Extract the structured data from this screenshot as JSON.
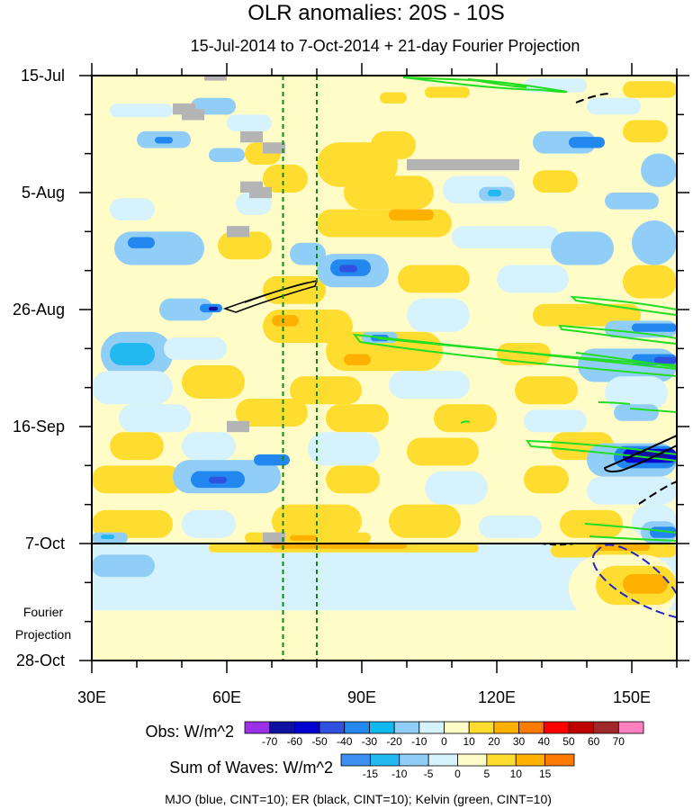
{
  "chart_data": {
    "type": "heatmap",
    "title": "OLR anomalies: 20S - 10S",
    "subtitle": "15-Jul-2014 to 7-Oct-2014 + 21-day Fourier Projection",
    "x_range": [
      30,
      160
    ],
    "x_ticks": [
      {
        "value": 30,
        "label": "30E"
      },
      {
        "value": 60,
        "label": "60E"
      },
      {
        "value": 90,
        "label": "90E"
      },
      {
        "value": 120,
        "label": "120E"
      },
      {
        "value": 150,
        "label": "150E"
      }
    ],
    "y_range_days": [
      0,
      105
    ],
    "y_ticks": [
      {
        "day": 0,
        "label": "15-Jul"
      },
      {
        "day": 21,
        "label": "5-Aug"
      },
      {
        "day": 42,
        "label": "26-Aug"
      },
      {
        "day": 63,
        "label": "16-Sep"
      },
      {
        "day": 84,
        "label": "7-Oct"
      },
      {
        "day": 105,
        "label": "28-Oct"
      }
    ],
    "fourier_label_lines": [
      "Fourier",
      "Projection"
    ],
    "observation_end_day": 84,
    "dashed_longitudes": [
      72.5,
      80
    ],
    "obs_legend": {
      "label": "Obs: W/m^2",
      "levels": [
        "-70",
        "-60",
        "-50",
        "-40",
        "-30",
        "-20",
        "-10",
        "0",
        "10",
        "20",
        "30",
        "40",
        "50",
        "60",
        "70"
      ],
      "colors": [
        "#9b30e8",
        "#1010a0",
        "#0000d0",
        "#3050e0",
        "#2288f0",
        "#10b8f0",
        "#90cef8",
        "#d6f2fc",
        "#fffcc8",
        "#ffdd30",
        "#ffb000",
        "#ff7a00",
        "#ff0000",
        "#c00000",
        "#a02828",
        "#ff80c0"
      ]
    },
    "waves_legend": {
      "label": "Sum of Waves: W/m^2",
      "levels": [
        "-15",
        "-10",
        "-5",
        "0",
        "5",
        "10",
        "15"
      ],
      "colors": [
        "#3a8ff0",
        "#22b8f0",
        "#90cef8",
        "#d6f2fc",
        "#fffcc8",
        "#ffdd30",
        "#ffb000",
        "#ff7a00"
      ]
    },
    "footnote": "MJO (blue, CINT=10); ER (black, CINT=10); Kelvin (green, CINT=10)",
    "wave_contours": {
      "kelvin": {
        "color": "#22dd22"
      },
      "er": {
        "color": "#000000"
      },
      "mjo": {
        "color": "#1c28c8"
      }
    },
    "patches": [
      {
        "lon": 30,
        "day": 0,
        "w": 130,
        "h": 105,
        "c": "#fffcc8"
      },
      {
        "lon": 30,
        "day": 84,
        "w": 130,
        "h": 21,
        "c": "#d6f2fc"
      },
      {
        "lon": 30,
        "day": 96,
        "w": 130,
        "h": 9,
        "c": "#fffcc8"
      },
      {
        "lon": 34,
        "day": 5,
        "w": 14,
        "h": 2.5,
        "c": "#d6f2fc"
      },
      {
        "lon": 52,
        "day": 4,
        "w": 10,
        "h": 3,
        "c": "#90cef8"
      },
      {
        "lon": 60,
        "day": 7,
        "w": 10,
        "h": 3,
        "c": "#d6f2fc"
      },
      {
        "lon": 94,
        "day": 3,
        "w": 6,
        "h": 2,
        "c": "#ffdd30"
      },
      {
        "lon": 104,
        "day": 2,
        "w": 10,
        "h": 2,
        "c": "#ffdd30"
      },
      {
        "lon": 126,
        "day": 0.5,
        "w": 14,
        "h": 2.5,
        "c": "#d6f2fc"
      },
      {
        "lon": 140,
        "day": 4,
        "w": 12,
        "h": 3,
        "c": "#d6f2fc"
      },
      {
        "lon": 148,
        "day": 1,
        "w": 12,
        "h": 3,
        "c": "#ffdd30"
      },
      {
        "lon": 40,
        "day": 10,
        "w": 12,
        "h": 3,
        "c": "#90cef8"
      },
      {
        "lon": 44,
        "day": 11,
        "w": 4,
        "h": 1.2,
        "c": "#2288f0"
      },
      {
        "lon": 56,
        "day": 13,
        "w": 8,
        "h": 2.5,
        "c": "#90cef8"
      },
      {
        "lon": 64,
        "day": 12,
        "w": 8,
        "h": 4,
        "c": "#ffdd30"
      },
      {
        "lon": 68,
        "day": 16,
        "w": 10,
        "h": 5,
        "c": "#ffdd30"
      },
      {
        "lon": 80,
        "day": 12,
        "w": 18,
        "h": 8,
        "c": "#ffdd30"
      },
      {
        "lon": 92,
        "day": 10,
        "w": 10,
        "h": 5,
        "c": "#ffdd30"
      },
      {
        "lon": 128,
        "day": 10,
        "w": 14,
        "h": 4,
        "c": "#90cef8"
      },
      {
        "lon": 136,
        "day": 11,
        "w": 8,
        "h": 2,
        "c": "#2288f0"
      },
      {
        "lon": 148,
        "day": 8,
        "w": 10,
        "h": 4,
        "c": "#ffdd30"
      },
      {
        "lon": 152,
        "day": 14,
        "w": 8,
        "h": 6,
        "c": "#90cef8"
      },
      {
        "lon": 86,
        "day": 18,
        "w": 20,
        "h": 6,
        "c": "#ffdd30"
      },
      {
        "lon": 108,
        "day": 18,
        "w": 16,
        "h": 5,
        "c": "#d6f2fc"
      },
      {
        "lon": 116,
        "day": 20,
        "w": 8,
        "h": 2.5,
        "c": "#90cef8"
      },
      {
        "lon": 118,
        "day": 20.5,
        "w": 3,
        "h": 1.2,
        "c": "#22b8f0"
      },
      {
        "lon": 128,
        "day": 17,
        "w": 10,
        "h": 4,
        "c": "#ffdd30"
      },
      {
        "lon": 144,
        "day": 21,
        "w": 12,
        "h": 3,
        "c": "#90cef8"
      },
      {
        "lon": 34,
        "day": 22,
        "w": 10,
        "h": 4,
        "c": "#d6f2fc"
      },
      {
        "lon": 62,
        "day": 21,
        "w": 8,
        "h": 4,
        "c": "#d6f2fc"
      },
      {
        "lon": 80,
        "day": 24,
        "w": 30,
        "h": 5,
        "c": "#ffdd30"
      },
      {
        "lon": 96,
        "day": 24,
        "w": 10,
        "h": 2,
        "c": "#ffb000"
      },
      {
        "lon": 35,
        "day": 28,
        "w": 20,
        "h": 6,
        "c": "#90cef8"
      },
      {
        "lon": 38,
        "day": 29,
        "w": 6,
        "h": 2,
        "c": "#2288f0"
      },
      {
        "lon": 58,
        "day": 28,
        "w": 12,
        "h": 5,
        "c": "#ffdd30"
      },
      {
        "lon": 74,
        "day": 30,
        "w": 8,
        "h": 4,
        "c": "#90cef8"
      },
      {
        "lon": 110,
        "day": 27,
        "w": 24,
        "h": 4,
        "c": "#d6f2fc"
      },
      {
        "lon": 132,
        "day": 28,
        "w": 14,
        "h": 6,
        "c": "#90cef8"
      },
      {
        "lon": 150,
        "day": 26,
        "w": 10,
        "h": 8,
        "c": "#90cef8"
      },
      {
        "lon": 68,
        "day": 36,
        "w": 14,
        "h": 5,
        "c": "#ffdd30"
      },
      {
        "lon": 80,
        "day": 32,
        "w": 16,
        "h": 6,
        "c": "#90cef8"
      },
      {
        "lon": 83,
        "day": 33,
        "w": 9,
        "h": 3,
        "c": "#2288f0"
      },
      {
        "lon": 85,
        "day": 34,
        "w": 4,
        "h": 1.3,
        "c": "#3050e0"
      },
      {
        "lon": 98,
        "day": 34,
        "w": 16,
        "h": 5,
        "c": "#ffdd30"
      },
      {
        "lon": 120,
        "day": 34,
        "w": 16,
        "h": 5,
        "c": "#d6f2fc"
      },
      {
        "lon": 148,
        "day": 34,
        "w": 12,
        "h": 6,
        "c": "#ffdd30"
      },
      {
        "lon": 45,
        "day": 40,
        "w": 12,
        "h": 4,
        "c": "#90cef8"
      },
      {
        "lon": 54,
        "day": 41,
        "w": 5,
        "h": 1.5,
        "c": "#2288f0"
      },
      {
        "lon": 56,
        "day": 41.5,
        "w": 2,
        "h": 0.7,
        "c": "#1010a0"
      },
      {
        "lon": 68,
        "day": 42,
        "w": 20,
        "h": 6,
        "c": "#ffdd30"
      },
      {
        "lon": 70,
        "day": 43,
        "w": 6,
        "h": 2,
        "c": "#ffb000"
      },
      {
        "lon": 100,
        "day": 40,
        "w": 14,
        "h": 6,
        "c": "#d6f2fc"
      },
      {
        "lon": 128,
        "day": 41,
        "w": 24,
        "h": 4,
        "c": "#ffdd30"
      },
      {
        "lon": 144,
        "day": 44,
        "w": 16,
        "h": 3,
        "c": "#90cef8"
      },
      {
        "lon": 150,
        "day": 44.5,
        "w": 10,
        "h": 1.5,
        "c": "#2288f0"
      },
      {
        "lon": 32,
        "day": 46,
        "w": 16,
        "h": 8,
        "c": "#90cef8"
      },
      {
        "lon": 34,
        "day": 48,
        "w": 10,
        "h": 4,
        "c": "#22b8f0"
      },
      {
        "lon": 46,
        "day": 47,
        "w": 14,
        "h": 4,
        "c": "#d6f2fc"
      },
      {
        "lon": 82,
        "day": 46,
        "w": 26,
        "h": 7,
        "c": "#ffdd30"
      },
      {
        "lon": 86,
        "day": 50,
        "w": 6,
        "h": 2,
        "c": "#ffb000"
      },
      {
        "lon": 90,
        "day": 46,
        "w": 8,
        "h": 2,
        "c": "#90cef8"
      },
      {
        "lon": 92,
        "day": 46.5,
        "w": 4,
        "h": 1.2,
        "c": "#2288f0"
      },
      {
        "lon": 120,
        "day": 48,
        "w": 12,
        "h": 4,
        "c": "#ffdd30"
      },
      {
        "lon": 138,
        "day": 49,
        "w": 22,
        "h": 6,
        "c": "#90cef8"
      },
      {
        "lon": 150,
        "day": 50,
        "w": 10,
        "h": 2,
        "c": "#2288f0"
      },
      {
        "lon": 155,
        "day": 50.5,
        "w": 5,
        "h": 1.2,
        "c": "#3050e0"
      },
      {
        "lon": 30,
        "day": 53,
        "w": 18,
        "h": 6,
        "c": "#d6f2fc"
      },
      {
        "lon": 50,
        "day": 52,
        "w": 14,
        "h": 6,
        "c": "#ffdd30"
      },
      {
        "lon": 74,
        "day": 54,
        "w": 16,
        "h": 5,
        "c": "#ffdd30"
      },
      {
        "lon": 96,
        "day": 53,
        "w": 18,
        "h": 5,
        "c": "#d6f2fc"
      },
      {
        "lon": 124,
        "day": 54,
        "w": 14,
        "h": 5,
        "c": "#ffdd30"
      },
      {
        "lon": 144,
        "day": 54,
        "w": 14,
        "h": 6,
        "c": "#d6f2fc"
      },
      {
        "lon": 36,
        "day": 59,
        "w": 16,
        "h": 5,
        "c": "#d6f2fc"
      },
      {
        "lon": 62,
        "day": 58,
        "w": 16,
        "h": 5,
        "c": "#ffdd30"
      },
      {
        "lon": 82,
        "day": 59,
        "w": 14,
        "h": 5,
        "c": "#ffdd30"
      },
      {
        "lon": 106,
        "day": 59,
        "w": 14,
        "h": 5,
        "c": "#ffdd30"
      },
      {
        "lon": 126,
        "day": 60,
        "w": 14,
        "h": 4,
        "c": "#d6f2fc"
      },
      {
        "lon": 146,
        "day": 59,
        "w": 10,
        "h": 3,
        "c": "#90cef8"
      },
      {
        "lon": 34,
        "day": 64,
        "w": 12,
        "h": 5,
        "c": "#ffdd30"
      },
      {
        "lon": 50,
        "day": 64,
        "w": 12,
        "h": 5,
        "c": "#d6f2fc"
      },
      {
        "lon": 78,
        "day": 64,
        "w": 16,
        "h": 6,
        "c": "#d6f2fc"
      },
      {
        "lon": 100,
        "day": 65,
        "w": 16,
        "h": 5,
        "c": "#ffdd30"
      },
      {
        "lon": 132,
        "day": 64,
        "w": 14,
        "h": 5,
        "c": "#ffdd30"
      },
      {
        "lon": 140,
        "day": 66,
        "w": 20,
        "h": 6,
        "c": "#90cef8"
      },
      {
        "lon": 146,
        "day": 66.5,
        "w": 14,
        "h": 4,
        "c": "#2288f0"
      },
      {
        "lon": 148,
        "day": 67,
        "w": 12,
        "h": 2.5,
        "c": "#0000d0"
      },
      {
        "lon": 150,
        "day": 67.5,
        "w": 8,
        "h": 1.3,
        "c": "#1010a0"
      },
      {
        "lon": 30,
        "day": 70,
        "w": 20,
        "h": 5,
        "c": "#ffdd30"
      },
      {
        "lon": 48,
        "day": 69,
        "w": 24,
        "h": 6,
        "c": "#90cef8"
      },
      {
        "lon": 52,
        "day": 71,
        "w": 12,
        "h": 3,
        "c": "#2288f0"
      },
      {
        "lon": 56,
        "day": 72,
        "w": 4,
        "h": 1.2,
        "c": "#3050e0"
      },
      {
        "lon": 66,
        "day": 68,
        "w": 8,
        "h": 2,
        "c": "#2288f0"
      },
      {
        "lon": 82,
        "day": 70,
        "w": 12,
        "h": 5,
        "c": "#ffdd30"
      },
      {
        "lon": 104,
        "day": 71,
        "w": 14,
        "h": 6,
        "c": "#d6f2fc"
      },
      {
        "lon": 126,
        "day": 70,
        "w": 10,
        "h": 5,
        "c": "#ffdd30"
      },
      {
        "lon": 140,
        "day": 72,
        "w": 20,
        "h": 5,
        "c": "#d6f2fc"
      },
      {
        "lon": 30,
        "day": 78,
        "w": 18,
        "h": 5,
        "c": "#ffdd30"
      },
      {
        "lon": 50,
        "day": 78,
        "w": 12,
        "h": 5,
        "c": "#d6f2fc"
      },
      {
        "lon": 70,
        "day": 77,
        "w": 20,
        "h": 6,
        "c": "#ffdd30"
      },
      {
        "lon": 96,
        "day": 77,
        "w": 16,
        "h": 6,
        "c": "#ffdd30"
      },
      {
        "lon": 116,
        "day": 79,
        "w": 14,
        "h": 4,
        "c": "#d6f2fc"
      },
      {
        "lon": 134,
        "day": 78,
        "w": 14,
        "h": 5,
        "c": "#ffdd30"
      },
      {
        "lon": 150,
        "day": 77,
        "w": 10,
        "h": 6,
        "c": "#d6f2fc"
      },
      {
        "lon": 30,
        "day": 82,
        "w": 8,
        "h": 2,
        "c": "#90cef8"
      },
      {
        "lon": 32,
        "day": 82.4,
        "w": 3,
        "h": 0.8,
        "c": "#22b8f0"
      },
      {
        "lon": 64,
        "day": 82,
        "w": 28,
        "h": 2,
        "c": "#ffdd30"
      },
      {
        "lon": 74,
        "day": 82.5,
        "w": 6,
        "h": 1,
        "c": "#ffb000"
      },
      {
        "lon": 152,
        "day": 80,
        "w": 8,
        "h": 4,
        "c": "#90cef8"
      },
      {
        "lon": 154,
        "day": 81,
        "w": 6,
        "h": 2,
        "c": "#2288f0"
      },
      {
        "lon": 56,
        "day": 84,
        "w": 60,
        "h": 1.6,
        "c": "#ffdd30"
      },
      {
        "lon": 70,
        "day": 84,
        "w": 30,
        "h": 0.9,
        "c": "#ffb000"
      },
      {
        "lon": 132,
        "day": 84,
        "w": 28,
        "h": 2.5,
        "c": "#ffdd30"
      },
      {
        "lon": 142,
        "day": 84,
        "w": 12,
        "h": 1.3,
        "c": "#ffb000"
      },
      {
        "lon": 136,
        "day": 86,
        "w": 24,
        "h": 12,
        "c": "#fffcc8"
      },
      {
        "lon": 142,
        "day": 88,
        "w": 18,
        "h": 7,
        "c": "#ffdd30"
      },
      {
        "lon": 148,
        "day": 89.5,
        "w": 10,
        "h": 3.5,
        "c": "#ffb000"
      },
      {
        "lon": 30,
        "day": 86,
        "w": 14,
        "h": 4,
        "c": "#90cef8"
      }
    ],
    "missing_cells": [
      {
        "lon": 55,
        "day": 0,
        "w": 5,
        "h": 0.9
      },
      {
        "lon": 48,
        "day": 5,
        "w": 5,
        "h": 2
      },
      {
        "lon": 50,
        "day": 6,
        "w": 5,
        "h": 2
      },
      {
        "lon": 63,
        "day": 10,
        "w": 5,
        "h": 2
      },
      {
        "lon": 68,
        "day": 12,
        "w": 5,
        "h": 2
      },
      {
        "lon": 100,
        "day": 15,
        "w": 25,
        "h": 2
      },
      {
        "lon": 63,
        "day": 19,
        "w": 5,
        "h": 2
      },
      {
        "lon": 65,
        "day": 20,
        "w": 5,
        "h": 2
      },
      {
        "lon": 60,
        "day": 27,
        "w": 5,
        "h": 2
      },
      {
        "lon": 60,
        "day": 62,
        "w": 5,
        "h": 2
      },
      {
        "lon": 68,
        "day": 82,
        "w": 5,
        "h": 2
      }
    ]
  }
}
